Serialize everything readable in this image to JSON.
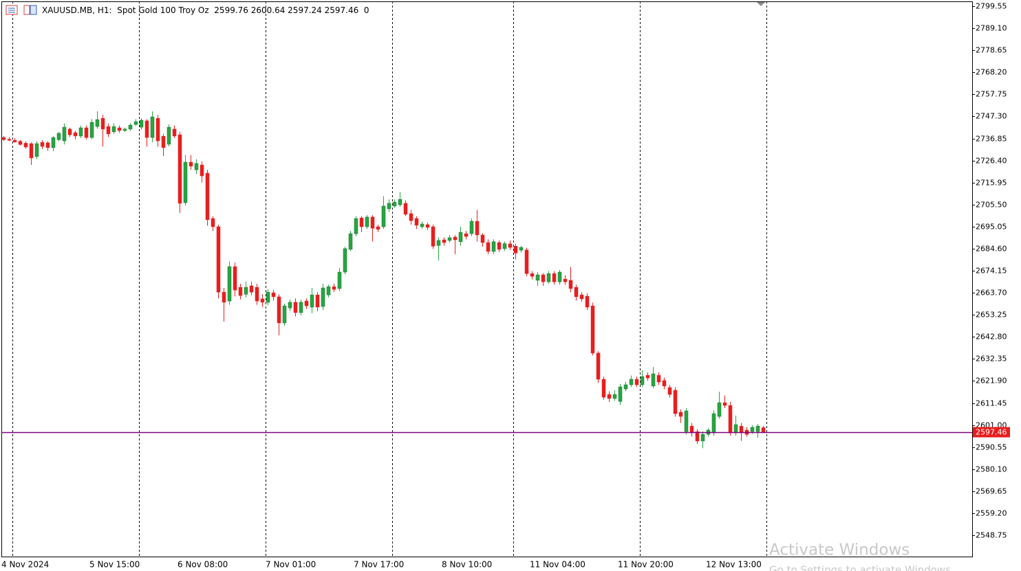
{
  "chart_data": {
    "type": "candlestick",
    "title": "XAUUSD.MB, H1:  Spot Gold 100 Troy Oz  2599.76 2600.64 2597.24 2597.46  0",
    "categories": [
      "4 Nov 2024",
      null,
      null,
      null,
      null,
      null,
      null,
      null,
      null,
      null,
      null,
      null,
      null,
      null,
      null,
      null,
      "5 Nov 15:00",
      null,
      null,
      null,
      null,
      null,
      null,
      null,
      null,
      null,
      null,
      null,
      null,
      null,
      null,
      null,
      "6 Nov 08:00",
      null,
      null,
      null,
      null,
      null,
      null,
      null,
      null,
      null,
      null,
      null,
      null,
      null,
      null,
      null,
      "7 Nov 01:00",
      null,
      null,
      null,
      null,
      null,
      null,
      null,
      null,
      null,
      null,
      null,
      null,
      null,
      null,
      null,
      "7 Nov 17:00",
      null,
      null,
      null,
      null,
      null,
      null,
      null,
      null,
      null,
      null,
      null,
      null,
      null,
      null,
      null,
      "8 Nov 10:00",
      null,
      null,
      null,
      null,
      null,
      null,
      null,
      null,
      null,
      null,
      null,
      null,
      null,
      null,
      null,
      "11 Nov 04:00",
      null,
      null,
      null,
      null,
      null,
      null,
      null,
      null,
      null,
      null,
      null,
      null,
      null,
      null,
      null,
      "11 Nov 20:00",
      null,
      null,
      null,
      null,
      null,
      null,
      null,
      null,
      null,
      null,
      null,
      null,
      null,
      null,
      null,
      "12 Nov 13:00",
      null,
      null,
      null,
      null,
      null,
      null,
      null,
      null,
      null,
      null
    ],
    "open": [
      2737.3,
      2736.5,
      2736.0,
      2735.5,
      2734.6,
      2734.4,
      2728.3,
      2735.0,
      2734.8,
      2732.5,
      2736.3,
      2735.7,
      2741.3,
      2739.6,
      2738.0,
      2741.9,
      2737.3,
      2742.5,
      2746.4,
      2742.5,
      2740.0,
      2741.9,
      2740.6,
      2741.3,
      2743.5,
      2742.2,
      2745.2,
      2737.3,
      2746.4,
      2737.9,
      2734.1,
      2741.3,
      2738.6,
      2706.4,
      2725.6,
      2722.0,
      2724.3,
      2720.4,
      2698.9,
      2695.0,
      2664.0,
      2659.8,
      2676.1,
      2666.3,
      2663.0,
      2667.0,
      2666.3,
      2660.8,
      2659.2,
      2663.7,
      2661.8,
      2649.4,
      2656.5,
      2659.2,
      2654.3,
      2659.8,
      2656.9,
      2662.7,
      2657.2,
      2662.7,
      2666.6,
      2665.7,
      2673.5,
      2684.3,
      2691.7,
      2699.2,
      2695.0,
      2699.6,
      2695.0,
      2695.0,
      2703.5,
      2704.8,
      2705.4,
      2706.1,
      2701.2,
      2698.9,
      2695.0,
      2696.0,
      2695.0,
      2686.1,
      2688.8,
      2688.5,
      2690.1,
      2687.9,
      2691.7,
      2691.7,
      2697.6,
      2691.1,
      2687.5,
      2683.3,
      2687.5,
      2684.6,
      2686.9,
      2685.8,
      2683.9,
      2684.0,
      2672.8,
      2669.6,
      2672.2,
      2668.9,
      2672.8,
      2668.9,
      2670.2,
      2669.6,
      2666.3,
      2662.7,
      2662.1,
      2657.5,
      2635.1,
      2622.7,
      2615.5,
      2613.6,
      2612.2,
      2618.1,
      2620.1,
      2622.7,
      2620.1,
      2624.6,
      2619.5,
      2624.6,
      2622.1,
      2618.8,
      2617.5,
      2607.1,
      2597.9,
      2600.5,
      2597.9,
      2593.4,
      2596.6,
      2597.3,
      2605.1,
      2611.6,
      2610.3,
      2597.3,
      2600.5,
      2598.6,
      2597.9,
      2597.9,
      2599.76
    ],
    "high": [
      2738.0,
      2737.5,
      2737.0,
      2736.2,
      2735.5,
      2735.0,
      2735.5,
      2736.0,
      2735.5,
      2738.0,
      2740.0,
      2744.0,
      2742.0,
      2740.5,
      2743.0,
      2743.0,
      2746.0,
      2749.7,
      2748.0,
      2744.0,
      2744.0,
      2743.0,
      2742.0,
      2744.0,
      2746.0,
      2746.5,
      2746.0,
      2749.7,
      2748.0,
      2739.0,
      2743.5,
      2743.0,
      2740.0,
      2729.0,
      2729.0,
      2727.0,
      2726.0,
      2722.0,
      2700.0,
      2696.0,
      2666.0,
      2678.5,
      2678.0,
      2668.0,
      2669.0,
      2669.0,
      2668.0,
      2663.0,
      2665.5,
      2665.0,
      2663.0,
      2658.5,
      2660.5,
      2661.0,
      2660.5,
      2661.0,
      2666.0,
      2664.0,
      2668.0,
      2667.5,
      2668.0,
      2675.5,
      2685.5,
      2693.0,
      2700.0,
      2700.0,
      2700.5,
      2700.5,
      2696.0,
      2709.5,
      2708.0,
      2708.0,
      2711.5,
      2707.5,
      2703.0,
      2700.0,
      2697.5,
      2697.0,
      2696.0,
      2690.0,
      2690.0,
      2691.0,
      2691.0,
      2695.0,
      2693.0,
      2699.0,
      2703.0,
      2692.0,
      2689.0,
      2689.0,
      2688.5,
      2688.0,
      2688.5,
      2687.0,
      2686.0,
      2685.0,
      2674.0,
      2673.5,
      2673.0,
      2674.0,
      2674.0,
      2674.5,
      2672.0,
      2676.0,
      2667.5,
      2664.0,
      2663.5,
      2659.0,
      2636.0,
      2624.0,
      2617.0,
      2617.5,
      2620.5,
      2621.5,
      2624.5,
      2624.0,
      2627.0,
      2626.0,
      2628.5,
      2626.0,
      2623.5,
      2620.0,
      2619.0,
      2608.5,
      2609.0,
      2602.0,
      2599.0,
      2598.0,
      2599.5,
      2608.0,
      2616.8,
      2615.0,
      2612.0,
      2605.5,
      2602.0,
      2600.0,
      2601.0,
      2601.5,
      2600.64
    ],
    "low": [
      2735.7,
      2735.5,
      2734.8,
      2733.5,
      2732.0,
      2724.3,
      2727.0,
      2731.8,
      2731.0,
      2730.8,
      2735.5,
      2734.0,
      2737.5,
      2736.5,
      2737.0,
      2736.3,
      2736.5,
      2741.5,
      2733.0,
      2737.5,
      2739.0,
      2739.5,
      2740.0,
      2740.5,
      2742.8,
      2741.0,
      2733.0,
      2735.0,
      2733.0,
      2728.5,
      2733.0,
      2737.0,
      2701.5,
      2705.0,
      2722.0,
      2720.0,
      2716.0,
      2695.5,
      2693.0,
      2661.0,
      2650.0,
      2658.0,
      2662.0,
      2660.5,
      2661.5,
      2662.5,
      2658.0,
      2657.0,
      2657.8,
      2660.0,
      2643.5,
      2648.0,
      2655.0,
      2652.5,
      2653.0,
      2656.0,
      2654.0,
      2655.0,
      2655.5,
      2661.5,
      2664.0,
      2664.5,
      2672.5,
      2683.5,
      2690.5,
      2692.5,
      2694.0,
      2688.0,
      2692.5,
      2694.0,
      2702.0,
      2704.0,
      2704.5,
      2700.0,
      2696.0,
      2694.0,
      2694.0,
      2693.5,
      2684.5,
      2679.0,
      2686.0,
      2687.5,
      2682.0,
      2686.0,
      2689.0,
      2690.5,
      2688.0,
      2685.5,
      2682.0,
      2682.0,
      2683.0,
      2683.5,
      2684.0,
      2679.5,
      2682.8,
      2671.5,
      2670.0,
      2667.0,
      2667.0,
      2668.0,
      2667.5,
      2667.5,
      2667.5,
      2664.0,
      2660.0,
      2659.5,
      2655.5,
      2634.0,
      2621.0,
      2613.0,
      2612.0,
      2612.5,
      2610.5,
      2617.0,
      2619.0,
      2619.0,
      2619.0,
      2622.0,
      2618.5,
      2620.0,
      2618.0,
      2614.0,
      2605.0,
      2602.0,
      2596.5,
      2595.5,
      2592.0,
      2590.0,
      2595.5,
      2596.0,
      2604.0,
      2609.0,
      2596.0,
      2596.0,
      2593.5,
      2595.5,
      2596.8,
      2595.0,
      2597.24
    ],
    "close": [
      2736.3,
      2736.0,
      2735.2,
      2734.0,
      2732.8,
      2727.6,
      2734.4,
      2733.1,
      2732.5,
      2737.3,
      2739.3,
      2742.2,
      2738.6,
      2738.0,
      2741.9,
      2737.3,
      2744.5,
      2745.8,
      2741.3,
      2739.0,
      2742.5,
      2740.6,
      2741.3,
      2743.2,
      2744.8,
      2745.5,
      2737.3,
      2747.1,
      2735.7,
      2732.5,
      2742.2,
      2738.0,
      2706.1,
      2725.6,
      2723.7,
      2725.0,
      2719.1,
      2698.3,
      2695.0,
      2664.0,
      2659.2,
      2676.1,
      2665.0,
      2662.4,
      2666.3,
      2664.0,
      2659.8,
      2659.2,
      2664.0,
      2661.8,
      2649.4,
      2657.5,
      2659.2,
      2654.3,
      2659.2,
      2657.5,
      2662.7,
      2656.9,
      2666.0,
      2666.6,
      2665.3,
      2673.5,
      2684.6,
      2691.7,
      2698.9,
      2695.0,
      2699.6,
      2694.3,
      2693.8,
      2704.8,
      2706.1,
      2706.7,
      2708.0,
      2700.9,
      2697.9,
      2695.7,
      2696.3,
      2694.7,
      2685.8,
      2688.5,
      2687.5,
      2689.8,
      2688.8,
      2692.4,
      2690.4,
      2697.6,
      2691.1,
      2687.5,
      2683.3,
      2687.9,
      2684.3,
      2687.0,
      2685.2,
      2682.5,
      2685.2,
      2672.8,
      2671.5,
      2672.2,
      2668.9,
      2672.8,
      2668.9,
      2673.5,
      2668.9,
      2665.7,
      2661.8,
      2660.8,
      2656.9,
      2635.1,
      2622.7,
      2614.2,
      2613.6,
      2615.5,
      2619.1,
      2620.1,
      2622.7,
      2620.1,
      2624.0,
      2623.3,
      2625.3,
      2621.4,
      2619.5,
      2615.5,
      2606.4,
      2605.1,
      2607.7,
      2597.3,
      2593.4,
      2596.6,
      2598.6,
      2606.4,
      2611.6,
      2610.3,
      2597.3,
      2601.2,
      2597.3,
      2596.6,
      2599.9,
      2600.5,
      2597.46
    ],
    "up_color": "#26a641",
    "down_color": "#e81e1e",
    "ylim": [
      2538.66,
      2801.83
    ],
    "yticks": [
      2799.55,
      {
        "value": 2789.1,
        "label": "2789.10"
      },
      2778.65,
      {
        "value": 2768.2,
        "label": "2768.20"
      },
      2757.75,
      {
        "value": 2747.3,
        "label": "2747.30"
      },
      2736.85,
      {
        "value": 2726.4,
        "label": "2726.40"
      },
      2715.95,
      {
        "value": 2705.5,
        "label": "2705.50"
      },
      2695.05,
      {
        "value": 2684.6,
        "label": "2684.60"
      },
      2674.15,
      {
        "value": 2663.7,
        "label": "2663.70"
      },
      2653.25,
      {
        "value": 2642.8,
        "label": "2642.80"
      },
      2632.35,
      {
        "value": 2621.9,
        "label": "2621.90"
      },
      2611.45,
      {
        "value": 2601.0,
        "label": "2601.00"
      },
      2590.55,
      {
        "value": 2580.1,
        "label": "2580.10"
      },
      2569.65,
      {
        "value": 2559.2,
        "label": "2559.20"
      },
      2548.75
    ],
    "price_line": 2597.46,
    "price_line_color": "#800080"
  },
  "watermark": [
    "Activate Windows",
    "Go to Settings to activate Windows"
  ]
}
